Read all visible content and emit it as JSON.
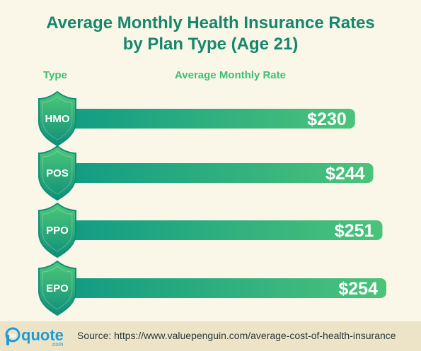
{
  "title_line1": "Average Monthly Health Insurance Rates",
  "title_line2": "by Plan Type (Age 21)",
  "column_headers": {
    "type": "Type",
    "rate": "Average Monthly Rate"
  },
  "colors": {
    "title": "#16866d",
    "header": "#3bbf70",
    "bar_start": "#0e9a84",
    "bar_end": "#4cc37a",
    "shield_light": "#4ec879",
    "shield_dark": "#0f8f79",
    "background": "#fbf7e8",
    "footer_bg": "#ede4c8",
    "logo": "#1e9bd7"
  },
  "chart_data": {
    "type": "bar",
    "orientation": "horizontal",
    "categories": [
      "HMO",
      "POS",
      "PPO",
      "EPO"
    ],
    "values": [
      230,
      244,
      251,
      254
    ],
    "value_labels": [
      "$230",
      "$244",
      "$251",
      "$254"
    ],
    "xlabel": "Average Monthly Rate",
    "ylabel": "Type",
    "value_unit": "$"
  },
  "footer": {
    "logo_icon": "pp-quote-logo",
    "logo_text": "quote",
    "logo_sub": ".com",
    "source_text": "Source: https://www.valuepenguin.com/average-cost-of-health-insurance"
  }
}
